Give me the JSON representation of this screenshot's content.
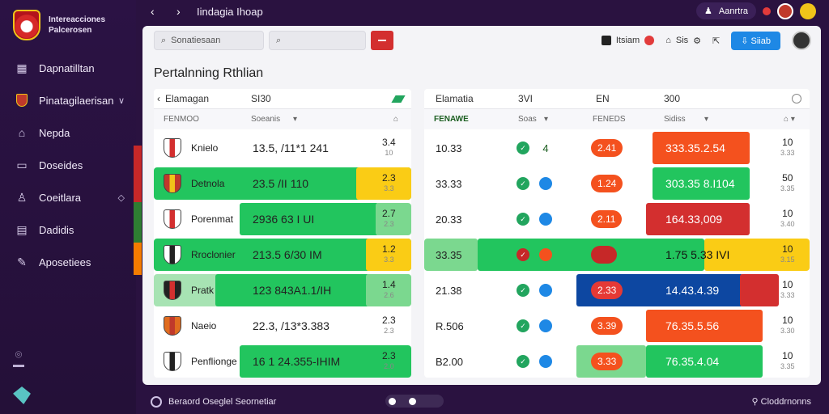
{
  "colors": {
    "sidebar": "#2b1244",
    "green": "#22c55e",
    "yellow": "#facc15",
    "red": "#d32f2f",
    "orange": "#f4511e",
    "blue": "#1e88e5",
    "navy": "#0d47a1"
  },
  "brand": {
    "line1": "Intereacciones",
    "line2": "Palcerosen"
  },
  "sidebar": {
    "items": [
      {
        "label": "Dapnatilltan",
        "icon": "grid-icon"
      },
      {
        "label": "Pinatagilaerisan",
        "icon": "crest-icon",
        "chevron": true
      },
      {
        "label": "Nepda",
        "icon": "home-icon"
      },
      {
        "label": "Doseides",
        "icon": "folder-icon"
      },
      {
        "label": "Coeitlara",
        "icon": "person-icon",
        "chevron": true
      },
      {
        "label": "Dadidis",
        "icon": "doc-icon"
      },
      {
        "label": "Aposetiees",
        "icon": "pen-icon"
      }
    ]
  },
  "topbar": {
    "title": "Iindagia Ihoap",
    "user": "Aanrtra"
  },
  "toolbar": {
    "search1_placeholder": "Sonatiesaan",
    "chip1": "Itsiam",
    "chip2": "Sis",
    "button": "Siiab"
  },
  "page_title": "Pertalnning Rthlian",
  "left_table": {
    "head1": [
      "Elamagan",
      "SI30"
    ],
    "head2": [
      "FENMOO",
      "Soeanis"
    ],
    "rows": [
      {
        "name": "Knielo",
        "value": "13.5, /11*1 241",
        "top": "3.4",
        "bottom": "10"
      },
      {
        "name": "Detnola",
        "value": "23.5 /II 110",
        "top": "2.3",
        "bottom": "3.3"
      },
      {
        "name": "Porenmat",
        "value": "2936 63 I UI",
        "top": "2.7",
        "bottom": "2.3"
      },
      {
        "name": "Rroclonier",
        "value": "213.5 6/30 IM",
        "top": "1.2",
        "bottom": "3.3"
      },
      {
        "name": "Pratk",
        "value": "123 843A1.1/IH",
        "top": "1.4",
        "bottom": "2.6"
      },
      {
        "name": "Naeio",
        "value": "22.3, /13*3.383",
        "top": "2.3",
        "bottom": "2.3"
      },
      {
        "name": "Penflionge",
        "value": "16 1 24.355-IHIM",
        "top": "2.3",
        "bottom": "2.0"
      }
    ]
  },
  "right_table": {
    "head1": [
      "Elamatia",
      "3VI",
      "EN",
      "300"
    ],
    "head2": [
      "FENAWE",
      "Soas",
      "FENEDS",
      "Sidiss"
    ],
    "rows": [
      {
        "odd": "10.33",
        "n": "4",
        "pill": "2.41",
        "amount": "333.35.2.54",
        "top": "10",
        "bottom": "3.33"
      },
      {
        "odd": "33.33",
        "n": "",
        "pill": "1.24",
        "amount": "303.35 8.I104",
        "top": "50",
        "bottom": "3.35"
      },
      {
        "odd": "20.33",
        "n": "",
        "pill": "2.11",
        "amount": "164.33,009",
        "top": "10",
        "bottom": "3.40"
      },
      {
        "odd": "33.35",
        "n": "",
        "pill": "",
        "amount": "1.75  5.33 IVI",
        "top": "10",
        "bottom": "3.15"
      },
      {
        "odd": "21.38",
        "n": "",
        "pill": "2.33",
        "amount": "14.43.4.39",
        "top": "10",
        "bottom": "3.33"
      },
      {
        "odd": "R.506",
        "n": "",
        "pill": "3.39",
        "amount": "76.35.5.56",
        "top": "10",
        "bottom": "3.30"
      },
      {
        "odd": "B2.00",
        "n": "",
        "pill": "3.33",
        "amount": "76.35.4.04",
        "top": "10",
        "bottom": "3.35"
      }
    ]
  },
  "footer": {
    "left": "Beraord  Oseglel Seornetiar",
    "right": "Cloddrnonns"
  }
}
